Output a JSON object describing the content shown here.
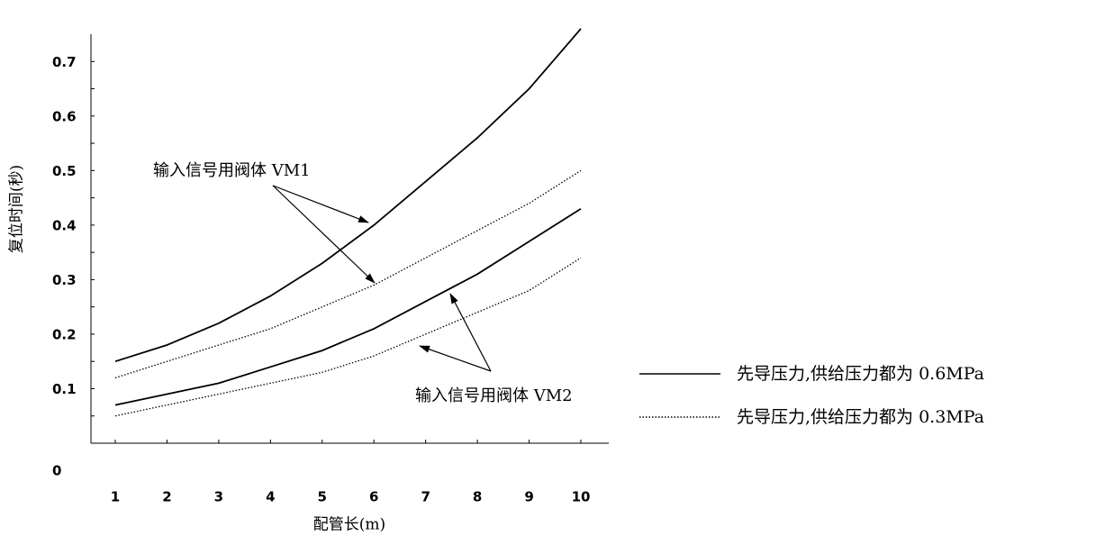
{
  "chart_data": {
    "type": "line",
    "xlabel": "配管长(m)",
    "ylabel": "复位时间(秒)",
    "xlim": [
      1,
      10
    ],
    "ylim": [
      0,
      0.75
    ],
    "x_ticks": [
      "1",
      "2",
      "3",
      "4",
      "5",
      "6",
      "7",
      "8",
      "9",
      "10"
    ],
    "y_ticks": [
      "0",
      "0.1",
      "0.2",
      "0.3",
      "0.4",
      "0.5",
      "0.6",
      "0.7"
    ],
    "grid": false,
    "legend_position": "right",
    "series": [
      {
        "name": "先导压力,供给压力都为 0.6MPa",
        "valve": "VM1",
        "style": "solid",
        "x": [
          1,
          2,
          3,
          4,
          5,
          6,
          7,
          8,
          9,
          10
        ],
        "y": [
          0.15,
          0.18,
          0.22,
          0.27,
          0.33,
          0.4,
          0.48,
          0.56,
          0.65,
          0.76
        ]
      },
      {
        "name": "先导压力,供给压力都为 0.3MPa",
        "valve": "VM1",
        "style": "dotted",
        "x": [
          1,
          2,
          3,
          4,
          5,
          6,
          7,
          8,
          9,
          10
        ],
        "y": [
          0.12,
          0.15,
          0.18,
          0.21,
          0.25,
          0.29,
          0.34,
          0.39,
          0.44,
          0.5
        ]
      },
      {
        "name": "先导压力,供给压力都为 0.6MPa",
        "valve": "VM2",
        "style": "solid",
        "x": [
          1,
          2,
          3,
          4,
          5,
          6,
          7,
          8,
          9,
          10
        ],
        "y": [
          0.07,
          0.09,
          0.11,
          0.14,
          0.17,
          0.21,
          0.26,
          0.31,
          0.37,
          0.43
        ]
      },
      {
        "name": "先导压力,供给压力都为 0.3MPa",
        "valve": "VM2",
        "style": "dotted",
        "x": [
          1,
          2,
          3,
          4,
          5,
          6,
          7,
          8,
          9,
          10
        ],
        "y": [
          0.05,
          0.07,
          0.09,
          0.11,
          0.13,
          0.16,
          0.2,
          0.24,
          0.28,
          0.34
        ]
      }
    ],
    "legend": [
      {
        "label": "先导压力,供给压力都为 0.6MPa",
        "style": "solid"
      },
      {
        "label": "先导压力,供给压力都为 0.3MPa",
        "style": "dotted"
      }
    ],
    "annotations": [
      {
        "text": "输入信号用阀体 VM1",
        "points_to": "VM1"
      },
      {
        "text": "输入信号用阀体 VM2",
        "points_to": "VM2"
      }
    ]
  }
}
